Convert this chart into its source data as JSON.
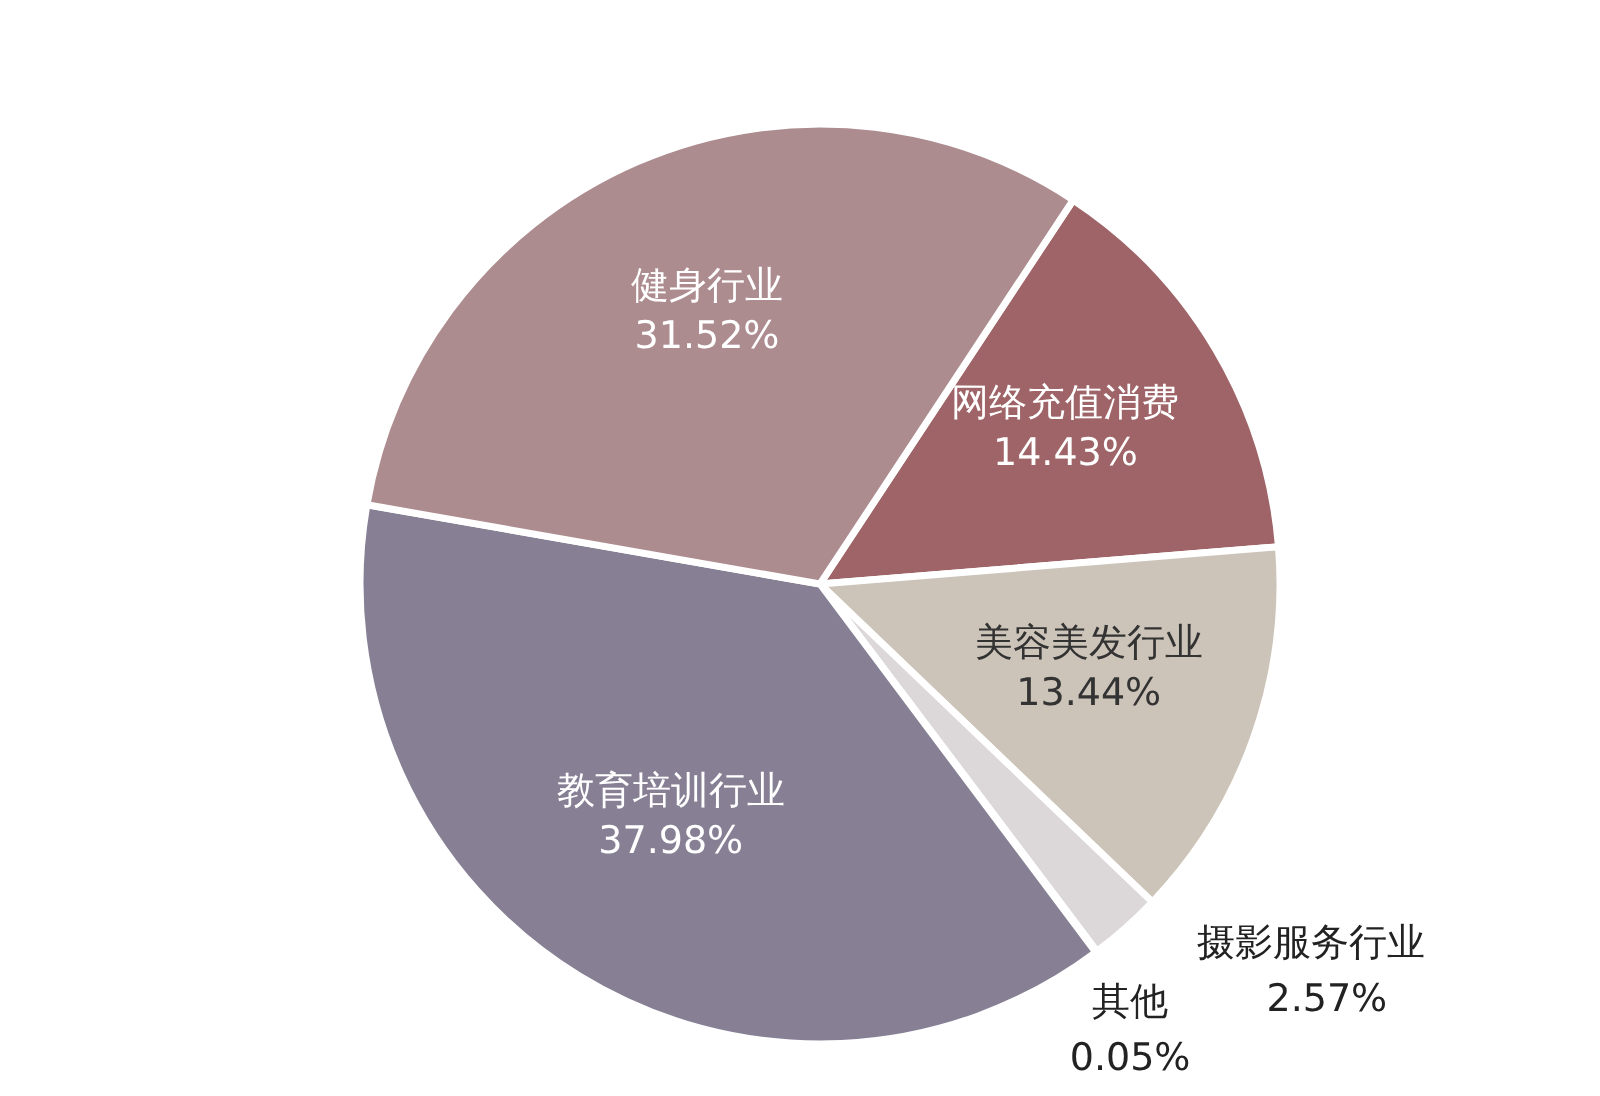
{
  "chart_data": {
    "type": "pie",
    "categories": [
      "网络充值消费",
      "美容美发行业",
      "摄影服务行业",
      "其他",
      "教育培训行业",
      "健身行业"
    ],
    "values": [
      14.43,
      13.44,
      2.57,
      0.05,
      37.98,
      31.52
    ],
    "colors": [
      "#9e6467",
      "#cdc4b9",
      "#dcd7d8",
      "#c8c0c8",
      "#878095",
      "#ad8c90"
    ],
    "value_labels": [
      "14.43%",
      "13.44%",
      "2.57%",
      "0.05%",
      "37.98%",
      "31.52%"
    ]
  }
}
